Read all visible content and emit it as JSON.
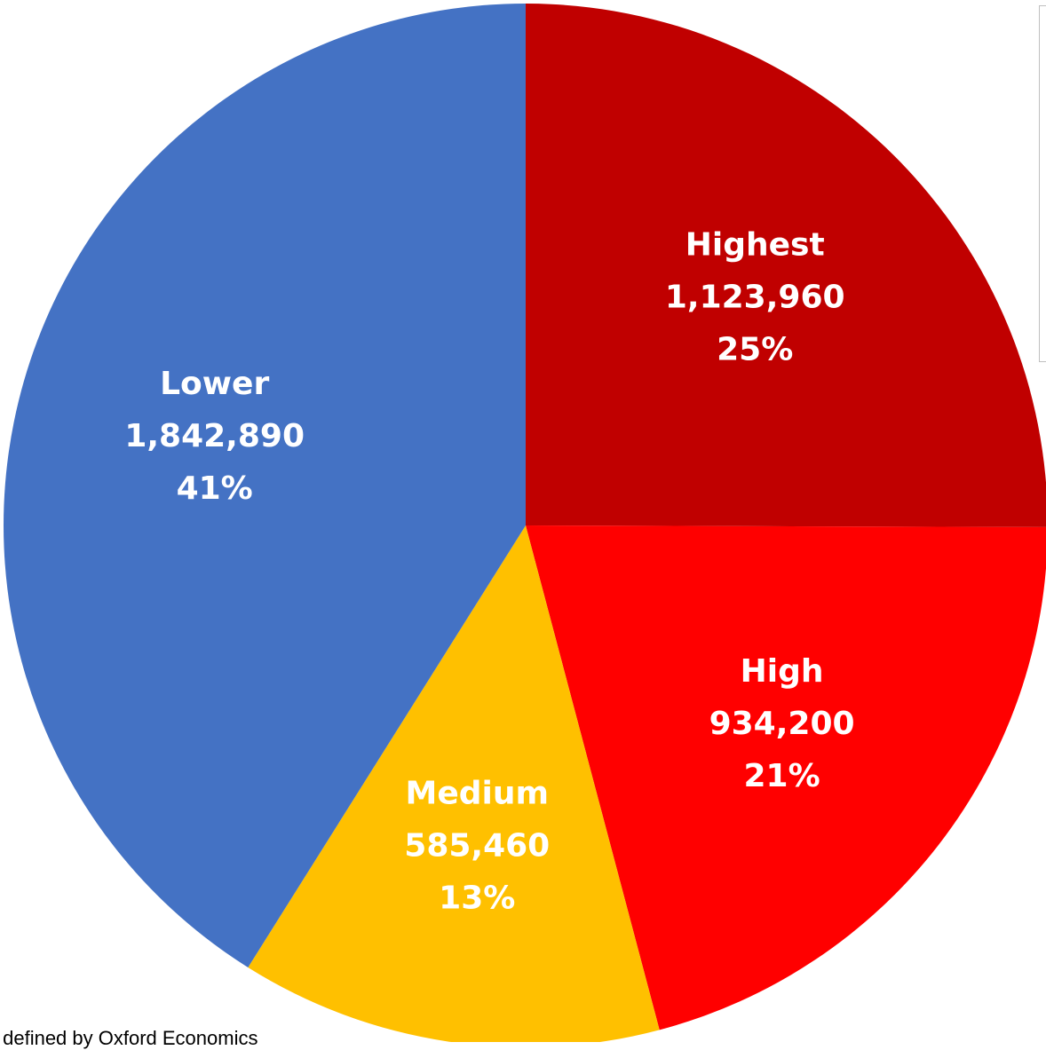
{
  "chart_data": {
    "type": "pie",
    "slices": [
      {
        "name": "Highest",
        "value": 1123960,
        "value_label": "1,123,960",
        "pct_label": "25%",
        "color": "#C00000"
      },
      {
        "name": "High",
        "value": 934200,
        "value_label": "934,200",
        "pct_label": "21%",
        "color": "#FF0000"
      },
      {
        "name": "Medium",
        "value": 585460,
        "value_label": "585,460",
        "pct_label": "13%",
        "color": "#FFC000"
      },
      {
        "name": "Lower",
        "value": 1842890,
        "value_label": "1,842,890",
        "pct_label": "41%",
        "color": "#4472C4"
      }
    ],
    "start_angle_deg": 0,
    "direction": "clockwise"
  },
  "footnote": "s defined by Oxford Economics"
}
